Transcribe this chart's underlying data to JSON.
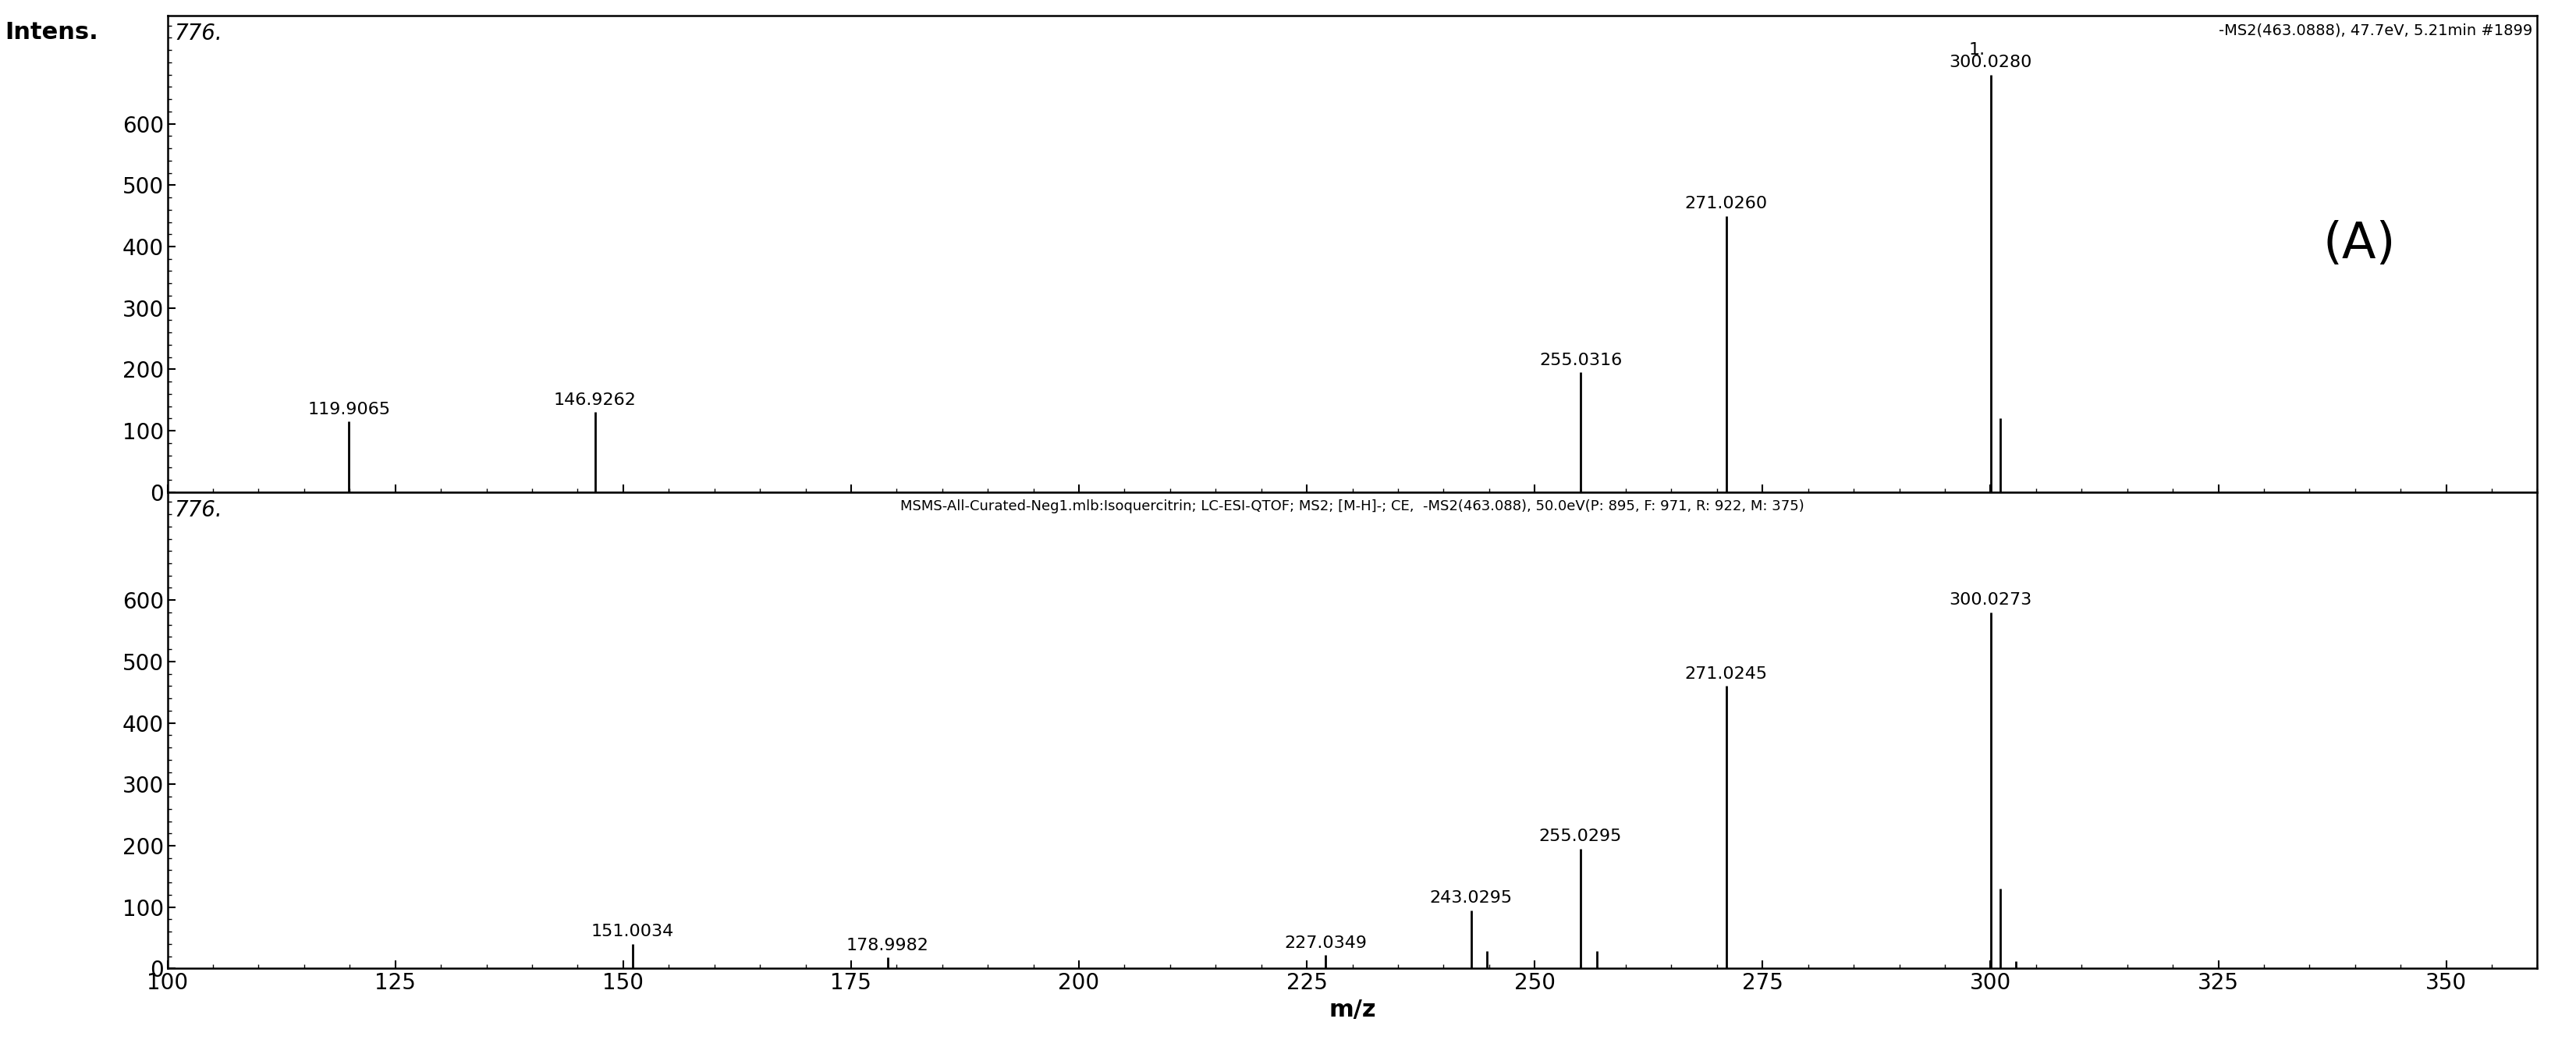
{
  "top_panel": {
    "title": "-MS2(463.0888), 47.7eV, 5.21min #1899",
    "peaks": [
      {
        "mz": 119.9065,
        "intensity": 115,
        "label": "119.9065"
      },
      {
        "mz": 146.9262,
        "intensity": 130,
        "label": "146.9262"
      },
      {
        "mz": 255.0316,
        "intensity": 195,
        "label": "255.0316"
      },
      {
        "mz": 271.026,
        "intensity": 450,
        "label": "271.0260"
      },
      {
        "mz": 300.028,
        "intensity": 680,
        "label": "300.0280"
      },
      {
        "mz": 301.05,
        "intensity": 120,
        "label": ""
      }
    ],
    "ylim": [
      0,
      776
    ],
    "yticks": [
      0,
      100,
      200,
      300,
      400,
      500,
      600
    ],
    "inside_label": "776.",
    "peak1_label": "1.",
    "annotation_A": "(A)"
  },
  "bottom_panel": {
    "title": "MSMS-All-Curated-Neg1.mlb:Isoquercitrin; LC-ESI-QTOF; MS2; [M-H]-; CE,  -MS2(463.088), 50.0eV(P: 895, F: 971, R: 922, M: 375)",
    "peaks": [
      {
        "mz": 151.0034,
        "intensity": 40,
        "label": "151.0034"
      },
      {
        "mz": 178.9982,
        "intensity": 18,
        "label": "178.9982"
      },
      {
        "mz": 227.0349,
        "intensity": 22,
        "label": "227.0349"
      },
      {
        "mz": 243.0295,
        "intensity": 95,
        "label": "243.0295"
      },
      {
        "mz": 244.8,
        "intensity": 28,
        "label": ""
      },
      {
        "mz": 255.0295,
        "intensity": 195,
        "label": "255.0295"
      },
      {
        "mz": 256.8,
        "intensity": 28,
        "label": ""
      },
      {
        "mz": 271.0245,
        "intensity": 460,
        "label": "271.0245"
      },
      {
        "mz": 300.0273,
        "intensity": 580,
        "label": "300.0273"
      },
      {
        "mz": 301.1,
        "intensity": 130,
        "label": ""
      },
      {
        "mz": 302.8,
        "intensity": 12,
        "label": ""
      }
    ],
    "ylim": [
      0,
      776
    ],
    "yticks": [
      0,
      100,
      200,
      300,
      400,
      500,
      600
    ],
    "inside_label": "776."
  },
  "xlim": [
    100,
    360
  ],
  "xticks": [
    100,
    125,
    150,
    175,
    200,
    225,
    250,
    275,
    300,
    325,
    350
  ],
  "xlabel": "m/z",
  "ylabel": "Intens.",
  "bg_color": "#ffffff",
  "line_color": "#000000",
  "peak_label_fontsize": 16,
  "tick_fontsize": 20,
  "title_fontsize": 14,
  "annotation_fontsize": 46,
  "ylabel_fontsize": 22,
  "xlabel_fontsize": 22,
  "inside_label_fontsize": 20
}
